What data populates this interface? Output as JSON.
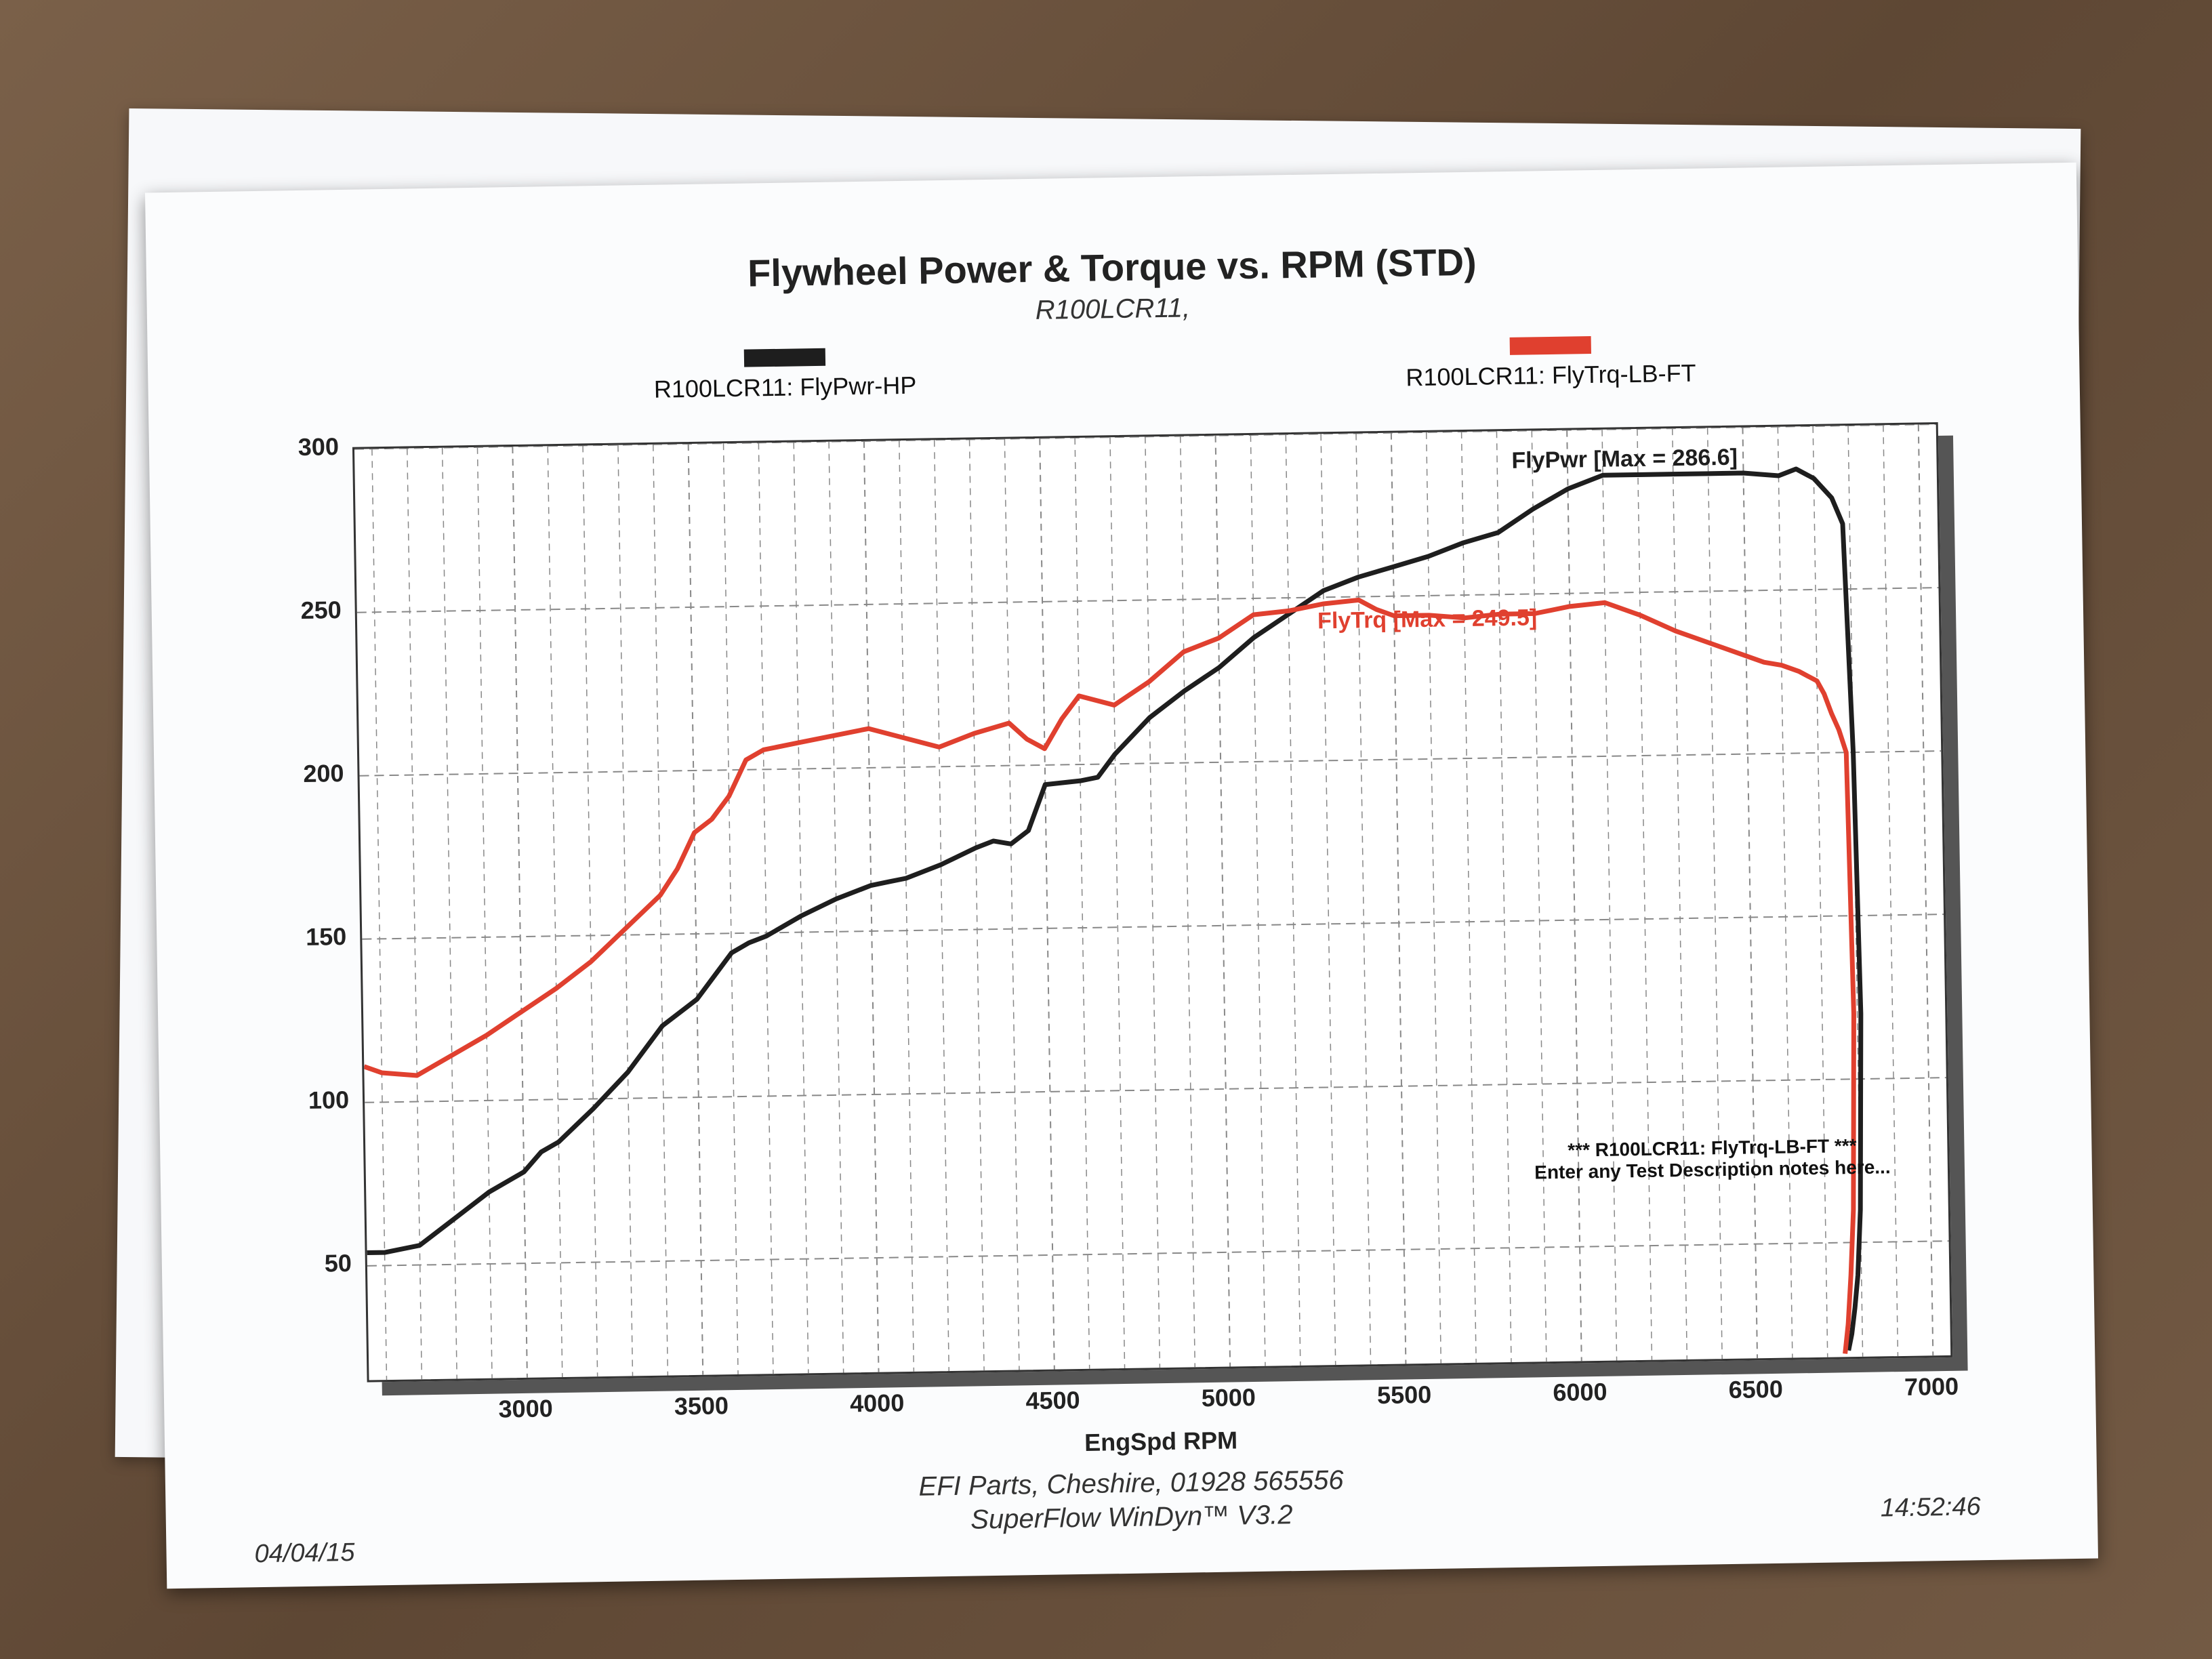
{
  "colors": {
    "power": "#1e1e1e",
    "torque": "#e0402f",
    "grid": "#888888"
  },
  "header": {
    "title": "Flywheel Power & Torque vs. RPM (STD)",
    "subtitle": "R100LCR11,"
  },
  "legend": {
    "power_label": "R100LCR11: FlyPwr-HP",
    "torque_label": "R100LCR11: FlyTrq-LB-FT"
  },
  "annotations": {
    "power_peak": "FlyPwr [Max = 286.6]",
    "torque_peak": "FlyTrq [Max = 249.5]",
    "note_line1": "*** R100LCR11: FlyTrq-LB-FT ***",
    "note_line2": "Enter any Test Description notes here..."
  },
  "footer": {
    "line1": "EFI Parts, Cheshire, 01928 565556",
    "line2": "SuperFlow WinDyn™ V3.2",
    "date": "04/04/15",
    "time": "14:52:46"
  },
  "chart_data": {
    "type": "line",
    "title": "Flywheel Power & Torque vs. RPM (STD)",
    "xlabel": "EngSpd RPM",
    "ylabel": "",
    "xlim": [
      2550,
      7050
    ],
    "ylim": [
      15,
      300
    ],
    "xticks": [
      3000,
      3500,
      4000,
      4500,
      5000,
      5500,
      6000,
      6500,
      7000
    ],
    "yticks": [
      50,
      100,
      150,
      200,
      250,
      300
    ],
    "series": [
      {
        "name": "R100LCR11: FlyPwr-HP",
        "color": "#1e1e1e",
        "x": [
          2550,
          2600,
          2700,
          2800,
          2900,
          3000,
          3050,
          3100,
          3200,
          3300,
          3400,
          3500,
          3550,
          3600,
          3650,
          3700,
          3800,
          3900,
          4000,
          4050,
          4100,
          4200,
          4300,
          4350,
          4400,
          4450,
          4500,
          4600,
          4650,
          4700,
          4800,
          4900,
          5000,
          5100,
          5200,
          5300,
          5400,
          5500,
          5600,
          5700,
          5800,
          5900,
          6000,
          6100,
          6200,
          6300,
          6400,
          6500,
          6600,
          6650,
          6700,
          6750,
          6780,
          6800,
          6810,
          6800,
          6790,
          6780,
          6770,
          6760
        ],
        "y": [
          54,
          54,
          56,
          64,
          72,
          78,
          84,
          87,
          97,
          108,
          122,
          130,
          137,
          144,
          147,
          149,
          155,
          160,
          164,
          165,
          166,
          170,
          175,
          177,
          176,
          180,
          194,
          195,
          196,
          203,
          214,
          222,
          229,
          238,
          245,
          252,
          256,
          259,
          262,
          266,
          269,
          276,
          282,
          286,
          286,
          286,
          286,
          286,
          285,
          287,
          284,
          278,
          270,
          200,
          120,
          60,
          40,
          30,
          22,
          17
        ],
        "peak": 286.6
      },
      {
        "name": "R100LCR11: FlyTrq-LB-FT",
        "color": "#e0402f",
        "x": [
          2550,
          2600,
          2700,
          2800,
          2900,
          3000,
          3100,
          3200,
          3300,
          3400,
          3450,
          3500,
          3550,
          3600,
          3650,
          3700,
          3800,
          3900,
          4000,
          4100,
          4200,
          4300,
          4400,
          4450,
          4500,
          4550,
          4600,
          4700,
          4800,
          4900,
          5000,
          5100,
          5200,
          5300,
          5400,
          5450,
          5500,
          5600,
          5700,
          5800,
          5900,
          6000,
          6100,
          6200,
          6300,
          6400,
          6500,
          6550,
          6600,
          6650,
          6700,
          6720,
          6740,
          6760,
          6780,
          6790,
          6780,
          6770,
          6760,
          6750
        ],
        "y": [
          111,
          109,
          108,
          114,
          120,
          127,
          134,
          142,
          152,
          162,
          170,
          181,
          185,
          192,
          203,
          206,
          208,
          210,
          212,
          209,
          206,
          210,
          213,
          208,
          205,
          214,
          221,
          218,
          225,
          234,
          238,
          245,
          246,
          248,
          249,
          246,
          244,
          244,
          243,
          244,
          244,
          246,
          247,
          243,
          238,
          234,
          230,
          228,
          227,
          225,
          222,
          218,
          212,
          207,
          200,
          120,
          60,
          40,
          25,
          16
        ],
        "peak": 249.5
      }
    ]
  }
}
